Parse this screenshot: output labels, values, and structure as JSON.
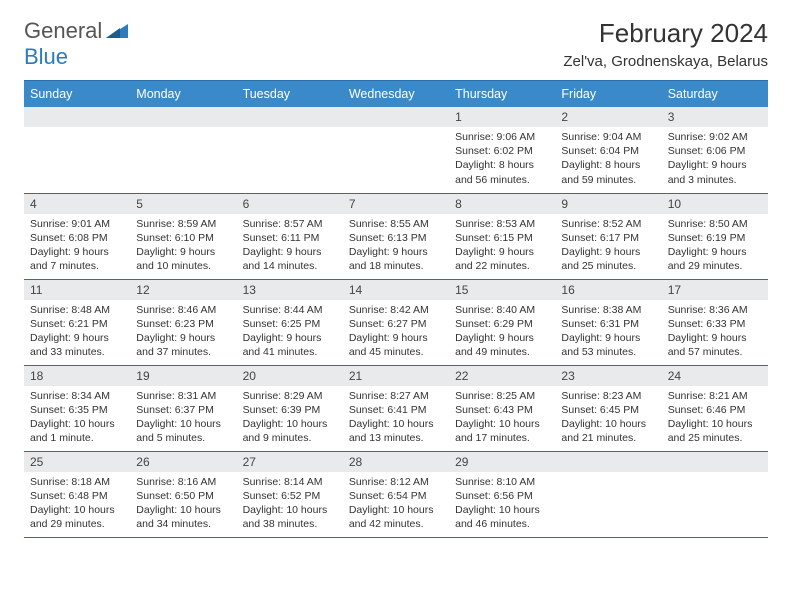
{
  "brand": {
    "part1": "General",
    "part2": "Blue"
  },
  "title": "February 2024",
  "location": "Zel'va, Grodnenskaya, Belarus",
  "colors": {
    "header_bg": "#3a8ac9",
    "header_text": "#ffffff",
    "daynum_bg": "#e9eaeb",
    "rule": "#2b6fa8",
    "text": "#333333"
  },
  "dow": [
    "Sunday",
    "Monday",
    "Tuesday",
    "Wednesday",
    "Thursday",
    "Friday",
    "Saturday"
  ],
  "weeks": [
    [
      null,
      null,
      null,
      null,
      {
        "n": "1",
        "sr": "Sunrise: 9:06 AM",
        "ss": "Sunset: 6:02 PM",
        "dl": "Daylight: 8 hours and 56 minutes."
      },
      {
        "n": "2",
        "sr": "Sunrise: 9:04 AM",
        "ss": "Sunset: 6:04 PM",
        "dl": "Daylight: 8 hours and 59 minutes."
      },
      {
        "n": "3",
        "sr": "Sunrise: 9:02 AM",
        "ss": "Sunset: 6:06 PM",
        "dl": "Daylight: 9 hours and 3 minutes."
      }
    ],
    [
      {
        "n": "4",
        "sr": "Sunrise: 9:01 AM",
        "ss": "Sunset: 6:08 PM",
        "dl": "Daylight: 9 hours and 7 minutes."
      },
      {
        "n": "5",
        "sr": "Sunrise: 8:59 AM",
        "ss": "Sunset: 6:10 PM",
        "dl": "Daylight: 9 hours and 10 minutes."
      },
      {
        "n": "6",
        "sr": "Sunrise: 8:57 AM",
        "ss": "Sunset: 6:11 PM",
        "dl": "Daylight: 9 hours and 14 minutes."
      },
      {
        "n": "7",
        "sr": "Sunrise: 8:55 AM",
        "ss": "Sunset: 6:13 PM",
        "dl": "Daylight: 9 hours and 18 minutes."
      },
      {
        "n": "8",
        "sr": "Sunrise: 8:53 AM",
        "ss": "Sunset: 6:15 PM",
        "dl": "Daylight: 9 hours and 22 minutes."
      },
      {
        "n": "9",
        "sr": "Sunrise: 8:52 AM",
        "ss": "Sunset: 6:17 PM",
        "dl": "Daylight: 9 hours and 25 minutes."
      },
      {
        "n": "10",
        "sr": "Sunrise: 8:50 AM",
        "ss": "Sunset: 6:19 PM",
        "dl": "Daylight: 9 hours and 29 minutes."
      }
    ],
    [
      {
        "n": "11",
        "sr": "Sunrise: 8:48 AM",
        "ss": "Sunset: 6:21 PM",
        "dl": "Daylight: 9 hours and 33 minutes."
      },
      {
        "n": "12",
        "sr": "Sunrise: 8:46 AM",
        "ss": "Sunset: 6:23 PM",
        "dl": "Daylight: 9 hours and 37 minutes."
      },
      {
        "n": "13",
        "sr": "Sunrise: 8:44 AM",
        "ss": "Sunset: 6:25 PM",
        "dl": "Daylight: 9 hours and 41 minutes."
      },
      {
        "n": "14",
        "sr": "Sunrise: 8:42 AM",
        "ss": "Sunset: 6:27 PM",
        "dl": "Daylight: 9 hours and 45 minutes."
      },
      {
        "n": "15",
        "sr": "Sunrise: 8:40 AM",
        "ss": "Sunset: 6:29 PM",
        "dl": "Daylight: 9 hours and 49 minutes."
      },
      {
        "n": "16",
        "sr": "Sunrise: 8:38 AM",
        "ss": "Sunset: 6:31 PM",
        "dl": "Daylight: 9 hours and 53 minutes."
      },
      {
        "n": "17",
        "sr": "Sunrise: 8:36 AM",
        "ss": "Sunset: 6:33 PM",
        "dl": "Daylight: 9 hours and 57 minutes."
      }
    ],
    [
      {
        "n": "18",
        "sr": "Sunrise: 8:34 AM",
        "ss": "Sunset: 6:35 PM",
        "dl": "Daylight: 10 hours and 1 minute."
      },
      {
        "n": "19",
        "sr": "Sunrise: 8:31 AM",
        "ss": "Sunset: 6:37 PM",
        "dl": "Daylight: 10 hours and 5 minutes."
      },
      {
        "n": "20",
        "sr": "Sunrise: 8:29 AM",
        "ss": "Sunset: 6:39 PM",
        "dl": "Daylight: 10 hours and 9 minutes."
      },
      {
        "n": "21",
        "sr": "Sunrise: 8:27 AM",
        "ss": "Sunset: 6:41 PM",
        "dl": "Daylight: 10 hours and 13 minutes."
      },
      {
        "n": "22",
        "sr": "Sunrise: 8:25 AM",
        "ss": "Sunset: 6:43 PM",
        "dl": "Daylight: 10 hours and 17 minutes."
      },
      {
        "n": "23",
        "sr": "Sunrise: 8:23 AM",
        "ss": "Sunset: 6:45 PM",
        "dl": "Daylight: 10 hours and 21 minutes."
      },
      {
        "n": "24",
        "sr": "Sunrise: 8:21 AM",
        "ss": "Sunset: 6:46 PM",
        "dl": "Daylight: 10 hours and 25 minutes."
      }
    ],
    [
      {
        "n": "25",
        "sr": "Sunrise: 8:18 AM",
        "ss": "Sunset: 6:48 PM",
        "dl": "Daylight: 10 hours and 29 minutes."
      },
      {
        "n": "26",
        "sr": "Sunrise: 8:16 AM",
        "ss": "Sunset: 6:50 PM",
        "dl": "Daylight: 10 hours and 34 minutes."
      },
      {
        "n": "27",
        "sr": "Sunrise: 8:14 AM",
        "ss": "Sunset: 6:52 PM",
        "dl": "Daylight: 10 hours and 38 minutes."
      },
      {
        "n": "28",
        "sr": "Sunrise: 8:12 AM",
        "ss": "Sunset: 6:54 PM",
        "dl": "Daylight: 10 hours and 42 minutes."
      },
      {
        "n": "29",
        "sr": "Sunrise: 8:10 AM",
        "ss": "Sunset: 6:56 PM",
        "dl": "Daylight: 10 hours and 46 minutes."
      },
      null,
      null
    ]
  ]
}
